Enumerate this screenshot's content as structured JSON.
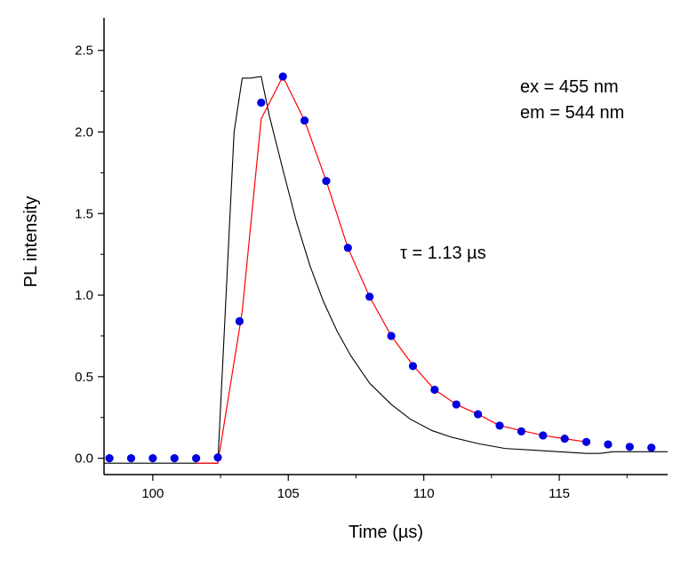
{
  "chart_data": {
    "type": "scatter",
    "xlabel": "Time (µs)",
    "ylabel": "PL intensity",
    "xlim": [
      98.2,
      119.0
    ],
    "ylim": [
      -0.1,
      2.7
    ],
    "x_ticks": [
      100,
      105,
      110,
      115
    ],
    "y_ticks": [
      0.0,
      0.5,
      1.0,
      1.5,
      2.0,
      2.5
    ],
    "x_tick_labels": [
      "100",
      "105",
      "110",
      "115"
    ],
    "y_tick_labels": [
      "0.0",
      "0.5",
      "1.0",
      "1.5",
      "2.0",
      "2.5"
    ],
    "annotations": {
      "ex_line": "ex  = 455 nm",
      "em_line": "em = 544 nm",
      "tau": "τ = 1.13 µs"
    },
    "series": [
      {
        "kind": "line",
        "color": "#000000",
        "x": [
          98.2,
          102.4,
          103.0,
          103.3,
          103.6,
          104.0,
          104.3,
          104.8,
          105.3,
          105.8,
          106.3,
          106.8,
          107.3,
          108.0,
          108.8,
          109.5,
          110.3,
          111.0,
          112.0,
          113.0,
          114.0,
          115.0,
          116.0,
          116.5,
          117.0,
          118.0,
          119.0
        ],
        "y": [
          -0.03,
          -0.03,
          2.0,
          2.33,
          2.33,
          2.34,
          2.1,
          1.77,
          1.45,
          1.18,
          0.96,
          0.78,
          0.63,
          0.46,
          0.33,
          0.24,
          0.17,
          0.13,
          0.09,
          0.06,
          0.05,
          0.04,
          0.03,
          0.03,
          0.04,
          0.04,
          0.04
        ]
      },
      {
        "kind": "line",
        "color": "#ff0000",
        "x": [
          101.6,
          102.4,
          103.3,
          104.0,
          104.8,
          105.6,
          106.4,
          107.2,
          108.0,
          108.8,
          109.6,
          110.4,
          111.2,
          112.0,
          112.8,
          113.6,
          114.4,
          115.2,
          116.0
        ],
        "y": [
          -0.03,
          -0.03,
          0.9,
          2.08,
          2.34,
          2.07,
          1.7,
          1.29,
          0.99,
          0.75,
          0.57,
          0.42,
          0.33,
          0.27,
          0.2,
          0.17,
          0.14,
          0.12,
          0.1
        ]
      },
      {
        "kind": "points",
        "color": "#0000e0",
        "x": [
          98.4,
          99.2,
          100.0,
          100.8,
          101.6,
          102.4,
          103.2,
          104.0,
          104.8,
          105.6,
          106.4,
          107.2,
          108.0,
          108.8,
          109.6,
          110.4,
          111.2,
          112.0,
          112.8,
          113.6,
          114.4,
          115.2,
          116.0,
          116.8,
          117.6,
          118.4
        ],
        "y": [
          0.0,
          0.0,
          0.0,
          0.0,
          0.0,
          0.005,
          0.84,
          2.18,
          2.34,
          2.07,
          1.7,
          1.29,
          0.99,
          0.75,
          0.565,
          0.42,
          0.33,
          0.27,
          0.2,
          0.165,
          0.14,
          0.12,
          0.1,
          0.085,
          0.07,
          0.065
        ]
      }
    ]
  }
}
